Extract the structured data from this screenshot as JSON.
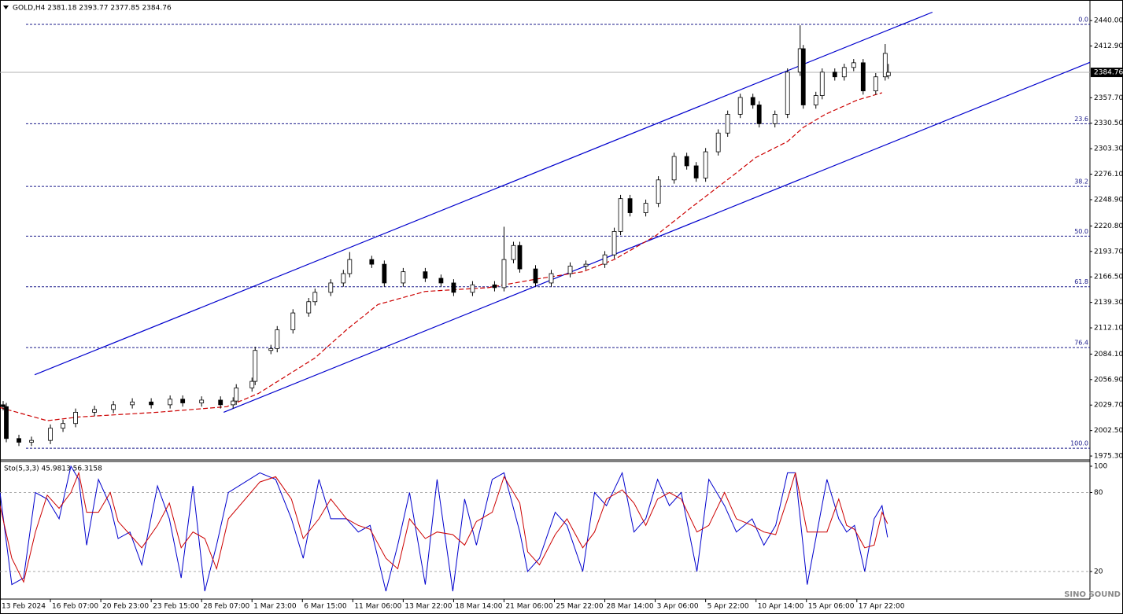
{
  "chart_data": [
    {
      "type": "candlestick",
      "title": "GOLD,H4  2381.18 2393.77 2377.85 2384.76",
      "x": [
        1,
        2,
        6,
        10,
        16,
        20,
        24,
        30,
        36,
        42,
        48,
        54,
        58,
        64,
        70,
        74,
        75,
        80,
        81,
        86,
        88,
        93,
        98,
        100,
        105,
        109,
        111,
        118,
        122,
        128,
        135,
        140,
        144,
        150,
        157,
        160,
        163,
        165,
        170,
        175,
        181,
        186,
        192,
        195,
        197,
        200,
        205,
        209,
        214,
        218,
        221,
        224,
        228,
        231,
        235,
        239,
        241,
        246,
        250,
        254,
        255,
        259,
        261,
        265,
        268,
        271,
        274,
        278,
        281,
        282
      ],
      "open": [
        2030,
        2028,
        1994,
        1990,
        1992,
        2005,
        2010,
        2022,
        2025,
        2030,
        2033,
        2030,
        2036,
        2032,
        2035,
        2030,
        2034,
        2048,
        2055,
        2088,
        2090,
        2110,
        2128,
        2140,
        2150,
        2160,
        2170,
        2185,
        2180,
        2160,
        2172,
        2165,
        2160,
        2150,
        2158,
        2155,
        2185,
        2200,
        2175,
        2160,
        2170,
        2178,
        2180,
        2190,
        2215,
        2250,
        2235,
        2245,
        2270,
        2295,
        2285,
        2272,
        2300,
        2320,
        2340,
        2358,
        2350,
        2330,
        2340,
        2385,
        2410,
        2350,
        2360,
        2385,
        2380,
        2390,
        2395,
        2365,
        2380,
        2381.18
      ],
      "high": [
        2034,
        2032,
        1998,
        1996,
        2009,
        2014,
        2026,
        2029,
        2034,
        2037,
        2037,
        2040,
        2040,
        2039,
        2039,
        2038,
        2052,
        2059,
        2092,
        2094,
        2114,
        2132,
        2144,
        2154,
        2164,
        2174,
        2193,
        2189,
        2184,
        2176,
        2176,
        2169,
        2164,
        2162,
        2162,
        2220,
        2204,
        2204,
        2179,
        2174,
        2182,
        2184,
        2194,
        2219,
        2254,
        2254,
        2249,
        2274,
        2299,
        2299,
        2289,
        2304,
        2324,
        2344,
        2362,
        2362,
        2354,
        2344,
        2389,
        2435,
        2414,
        2364,
        2389,
        2389,
        2394,
        2399,
        2399,
        2384,
        2415,
        2393.77
      ],
      "low": [
        2024,
        1990,
        1986,
        1986,
        1988,
        2001,
        2006,
        2018,
        2021,
        2026,
        2026,
        2026,
        2028,
        2028,
        2026,
        2026,
        2030,
        2044,
        2051,
        2084,
        2086,
        2106,
        2124,
        2136,
        2146,
        2156,
        2166,
        2176,
        2156,
        2156,
        2161,
        2156,
        2146,
        2146,
        2151,
        2151,
        2181,
        2171,
        2156,
        2156,
        2166,
        2174,
        2176,
        2186,
        2211,
        2231,
        2231,
        2241,
        2266,
        2281,
        2268,
        2268,
        2296,
        2316,
        2336,
        2346,
        2326,
        2326,
        2336,
        2381,
        2346,
        2346,
        2356,
        2376,
        2376,
        2386,
        2361,
        2361,
        2376,
        2377.85
      ],
      "close": [
        2028,
        1994,
        1990,
        1992,
        2005,
        2010,
        2022,
        2025,
        2030,
        2033,
        2030,
        2036,
        2032,
        2035,
        2030,
        2034,
        2048,
        2055,
        2088,
        2090,
        2110,
        2128,
        2140,
        2150,
        2160,
        2170,
        2185,
        2180,
        2160,
        2172,
        2165,
        2160,
        2150,
        2158,
        2155,
        2185,
        2200,
        2175,
        2160,
        2170,
        2178,
        2180,
        2190,
        2215,
        2250,
        2235,
        2245,
        2270,
        2295,
        2285,
        2272,
        2300,
        2320,
        2340,
        2358,
        2350,
        2330,
        2340,
        2385,
        2410,
        2350,
        2360,
        2385,
        2380,
        2390,
        2395,
        2365,
        2380,
        2405,
        2384.76
      ],
      "up_color": "#ffffff",
      "down_color": "#000000",
      "xlim": [
        0,
        346
      ],
      "ylim": [
        1972,
        2462
      ],
      "yticks": [
        {
          "value": 2440,
          "label": "2440.00"
        },
        {
          "value": 2412.9,
          "label": "2412.90"
        },
        {
          "value": 2357.7,
          "label": "2357.70"
        },
        {
          "value": 2330.5,
          "label": "2330.50"
        },
        {
          "value": 2303.3,
          "label": "2303.30"
        },
        {
          "value": 2276.1,
          "label": "2276.10"
        },
        {
          "value": 2248.9,
          "label": "2248.90"
        },
        {
          "value": 2220.8,
          "label": "2220.80"
        },
        {
          "value": 2193.7,
          "label": "2193.70"
        },
        {
          "value": 2166.5,
          "label": "2166.50"
        },
        {
          "value": 2139.3,
          "label": "2139.30"
        },
        {
          "value": 2112.1,
          "label": "2112.10"
        },
        {
          "value": 2084.1,
          "label": "2084.10"
        },
        {
          "value": 2056.9,
          "label": "2056.90"
        },
        {
          "value": 2029.7,
          "label": "2029.70"
        },
        {
          "value": 2002.5,
          "label": "2002.50"
        },
        {
          "value": 1975.3,
          "label": "1975.30"
        }
      ],
      "xticks": [
        {
          "value": 0,
          "label": "13 Feb 2024"
        },
        {
          "value": 16,
          "label": "16 Feb 07:00"
        },
        {
          "value": 32,
          "label": "20 Feb 23:00"
        },
        {
          "value": 48,
          "label": "23 Feb 15:00"
        },
        {
          "value": 64,
          "label": "28 Feb 07:00"
        },
        {
          "value": 80,
          "label": "1 Mar 23:00"
        },
        {
          "value": 96,
          "label": "6 Mar 15:00"
        },
        {
          "value": 112,
          "label": "11 Mar 06:00"
        },
        {
          "value": 128,
          "label": "13 Mar 22:00"
        },
        {
          "value": 144,
          "label": "18 Mar 14:00"
        },
        {
          "value": 160,
          "label": "21 Mar 06:00"
        },
        {
          "value": 176,
          "label": "25 Mar 22:00"
        },
        {
          "value": 192,
          "label": "28 Mar 14:00"
        },
        {
          "value": 208,
          "label": "3 Apr 06:00"
        },
        {
          "value": 224,
          "label": "5 Apr 22:00"
        },
        {
          "value": 240,
          "label": "10 Apr 14:00"
        },
        {
          "value": 256,
          "label": "15 Apr 06:00"
        },
        {
          "value": 272,
          "label": "17 Apr 22:00"
        }
      ],
      "current_price": {
        "value": 2384.76,
        "label": "2384.76"
      },
      "moving_average": {
        "color": "#cc0000",
        "x": [
          0,
          15,
          25,
          50,
          72,
          82,
          100,
          110,
          120,
          135,
          155,
          170,
          185,
          195,
          208,
          220,
          232,
          240,
          250,
          255,
          262,
          272,
          280
        ],
        "values": [
          2027,
          2013,
          2017,
          2022,
          2028,
          2042,
          2080,
          2110,
          2137,
          2151,
          2155,
          2164,
          2172,
          2185,
          2210,
          2242,
          2273,
          2294,
          2311,
          2326,
          2340,
          2355,
          2363
        ]
      },
      "channels": {
        "color": "#0000cd",
        "lines": [
          {
            "x": [
              11,
              296
            ],
            "y": [
              2062,
              2449
            ]
          },
          {
            "x": [
              71,
              346
            ],
            "y": [
              2022,
              2395.5
            ]
          }
        ]
      },
      "fib_levels": [
        {
          "value": 2436,
          "label": "0.0"
        },
        {
          "value": 2330,
          "label": "23.6"
        },
        {
          "value": 2263,
          "label": "38.2"
        },
        {
          "value": 2210,
          "label": "50.0"
        },
        {
          "value": 2156,
          "label": "61.8"
        },
        {
          "value": 2091,
          "label": "76.4"
        },
        {
          "value": 1983.6,
          "label": "100.0"
        }
      ],
      "watermark": "SINO SOUND"
    },
    {
      "type": "line",
      "title": "Sto(5,3,3) 45.9813 56.3158",
      "x": [
        0,
        3.75,
        7.5,
        11.25,
        15,
        18.75,
        22.5,
        25,
        27.5,
        31.25,
        35,
        37.5,
        41.25,
        45,
        50,
        53.75,
        57.5,
        61.25,
        65,
        68.75,
        72.5,
        82.5,
        87.5,
        92.5,
        96.25,
        101.25,
        105,
        110,
        113.75,
        117.5,
        122.5,
        126.25,
        130,
        135,
        138.75,
        143.75,
        147.5,
        151.25,
        156.25,
        160,
        165,
        167.5,
        171.25,
        176.25,
        180,
        185,
        188.75,
        192.5,
        197.5,
        201.25,
        205,
        208.75,
        212.5,
        216.25,
        221.25,
        225,
        230,
        233.75,
        238.75,
        242.5,
        246.25,
        250,
        252.5,
        256.25,
        262.5,
        266.25,
        268.75,
        271.25,
        274.5,
        277.5,
        280,
        281.75
      ],
      "series": [
        {
          "color": "#0000cd",
          "values": [
            80,
            10,
            15,
            80,
            75,
            60,
            100,
            90,
            40,
            90,
            70,
            45,
            50,
            25,
            85,
            60,
            15,
            85,
            5,
            40,
            80,
            95,
            90,
            60,
            30,
            90,
            60,
            60,
            50,
            55,
            5,
            40,
            80,
            10,
            90,
            5,
            75,
            40,
            90,
            95,
            50,
            20,
            30,
            65,
            55,
            20,
            80,
            70,
            95,
            50,
            60,
            90,
            70,
            80,
            20,
            90,
            70,
            50,
            60,
            40,
            55,
            95,
            95,
            10,
            90,
            60,
            50,
            55,
            20,
            60,
            70,
            45.98
          ]
        },
        {
          "color": "#cc0000",
          "values": [
            70,
            30,
            12,
            50,
            78,
            68,
            80,
            95,
            65,
            65,
            80,
            58,
            48,
            38,
            55,
            72,
            38,
            50,
            45,
            22,
            60,
            88,
            92,
            75,
            45,
            60,
            75,
            60,
            55,
            52,
            30,
            22,
            60,
            45,
            50,
            48,
            40,
            58,
            65,
            92,
            72,
            35,
            25,
            48,
            60,
            38,
            50,
            75,
            82,
            72,
            55,
            75,
            80,
            75,
            50,
            55,
            80,
            60,
            55,
            50,
            48,
            75,
            95,
            50,
            50,
            75,
            55,
            52,
            38,
            40,
            65,
            56.32
          ]
        }
      ],
      "xlim": [
        0,
        346
      ],
      "ylim": [
        -1,
        103
      ],
      "yticks": [
        20,
        80,
        100
      ],
      "levels": [
        20,
        80
      ]
    }
  ]
}
